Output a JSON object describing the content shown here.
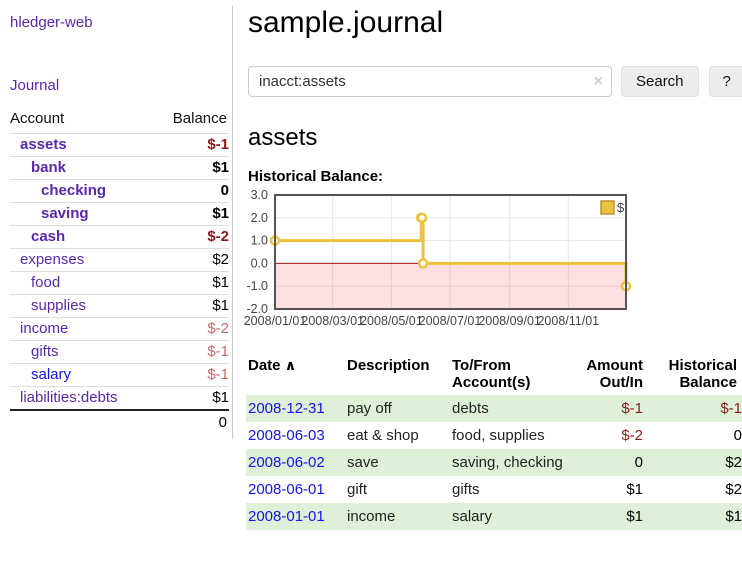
{
  "app": {
    "brand": "hledger-web"
  },
  "colors": {
    "link_purple": "#5a28a8",
    "link_blue": "#1414ee",
    "negative_strong": "#8b1a1a",
    "negative_soft": "#c36a6c",
    "row_green": "#dff0d8",
    "chart_line_gold": "#edc240",
    "chart_zero_line": "#991111",
    "chart_negative_fill": "rgba(255,0,0,0.12)"
  },
  "sidebar": {
    "nav": {
      "journal_label": "Journal"
    },
    "accounts_table": {
      "headers": {
        "account": "Account",
        "balance": "Balance"
      },
      "rows": [
        {
          "name": "assets",
          "balance": "$-1",
          "indent": 0,
          "emph": true,
          "balance_tone": "negative-strong",
          "link_tone": "visited"
        },
        {
          "name": "bank",
          "balance": "$1",
          "indent": 1,
          "emph": true,
          "balance_tone": "normal-strong",
          "link_tone": "visited"
        },
        {
          "name": "checking",
          "balance": "0",
          "indent": 2,
          "emph": true,
          "balance_tone": "normal-strong",
          "link_tone": "visited"
        },
        {
          "name": "saving",
          "balance": "$1",
          "indent": 2,
          "emph": true,
          "balance_tone": "normal-strong",
          "link_tone": "visited"
        },
        {
          "name": "cash",
          "balance": "$-2",
          "indent": 1,
          "emph": true,
          "balance_tone": "negative-strong",
          "link_tone": "visited"
        },
        {
          "name": "expenses",
          "balance": "$2",
          "indent": 0,
          "emph": false,
          "balance_tone": "normal",
          "link_tone": "visited"
        },
        {
          "name": "food",
          "balance": "$1",
          "indent": 1,
          "emph": false,
          "balance_tone": "normal",
          "link_tone": "visited"
        },
        {
          "name": "supplies",
          "balance": "$1",
          "indent": 1,
          "emph": false,
          "balance_tone": "normal",
          "link_tone": "visited"
        },
        {
          "name": "income",
          "balance": "$-2",
          "indent": 0,
          "emph": false,
          "balance_tone": "negative-soft",
          "link_tone": "visited"
        },
        {
          "name": "gifts",
          "balance": "$-1",
          "indent": 1,
          "emph": false,
          "balance_tone": "negative-soft",
          "link_tone": "visited"
        },
        {
          "name": "salary",
          "balance": "$-1",
          "indent": 1,
          "emph": false,
          "balance_tone": "negative-soft",
          "link_tone": "unvisited"
        },
        {
          "name": "liabilities:debts",
          "balance": "$1",
          "indent": 0,
          "emph": false,
          "balance_tone": "normal",
          "link_tone": "visited"
        }
      ],
      "total": "0"
    }
  },
  "main": {
    "title": "sample.journal",
    "search": {
      "value": "inacct:assets",
      "clear_icon": "×",
      "search_button": "Search",
      "help_button": "?"
    },
    "account_heading": "assets",
    "chart_heading": "Historical Balance:"
  },
  "chart_data": {
    "type": "line",
    "title": "Historical Balance:",
    "legend": {
      "label": "$",
      "position": "top-right",
      "swatch_color": "#edc240"
    },
    "series": [
      {
        "name": "$",
        "color": "#edc240",
        "step": true,
        "marker": "open-circle",
        "points": [
          [
            "2008-01-01",
            1.0
          ],
          [
            "2008-06-01",
            2.0
          ],
          [
            "2008-06-02",
            2.0
          ],
          [
            "2008-06-03",
            0.0
          ],
          [
            "2008-12-31",
            -1.0
          ]
        ]
      }
    ],
    "x_range": [
      "2008-01-01",
      "2008-12-31"
    ],
    "ylim": [
      -2.0,
      3.0
    ],
    "y_ticks": [
      3.0,
      2.0,
      1.0,
      0.0,
      -1.0,
      -2.0
    ],
    "x_ticks": [
      {
        "label": "2008/01/01",
        "date": "2008-01-01"
      },
      {
        "label": "2008/03/01",
        "date": "2008-03-01"
      },
      {
        "label": "2008/05/01",
        "date": "2008-05-01"
      },
      {
        "label": "2008/07/01",
        "date": "2008-07-01"
      },
      {
        "label": "2008/09/01",
        "date": "2008-09-01"
      },
      {
        "label": "2008/11/01",
        "date": "2008-11-01"
      }
    ],
    "grid": true,
    "negative_region_fill": "rgba(255,0,0,0.12)",
    "zero_line_color": "#991111"
  },
  "register_table": {
    "headers": {
      "date": "Date",
      "sort_indicator": "∧",
      "description": "Description",
      "tofrom": "To/From Account(s)",
      "amount": "Amount Out/In",
      "balance": "Historical Balance"
    },
    "rows": [
      {
        "date": "2008-12-31",
        "description": "pay off",
        "tofrom": "debts",
        "amount": "$-1",
        "amount_tone": "negative",
        "balance": "$-1",
        "balance_tone": "negative",
        "shaded": true
      },
      {
        "date": "2008-06-03",
        "description": "eat & shop",
        "tofrom": "food, supplies",
        "amount": "$-2",
        "amount_tone": "negative",
        "balance": "0",
        "balance_tone": "normal",
        "shaded": false
      },
      {
        "date": "2008-06-02",
        "description": "save",
        "tofrom": "saving, checking",
        "amount": "0",
        "amount_tone": "normal",
        "balance": "$2",
        "balance_tone": "normal",
        "shaded": true
      },
      {
        "date": "2008-06-01",
        "description": "gift",
        "tofrom": "gifts",
        "amount": "$1",
        "amount_tone": "normal",
        "balance": "$2",
        "balance_tone": "normal",
        "shaded": false
      },
      {
        "date": "2008-01-01",
        "description": "income",
        "tofrom": "salary",
        "amount": "$1",
        "amount_tone": "normal",
        "balance": "$1",
        "balance_tone": "normal",
        "shaded": true
      }
    ]
  }
}
